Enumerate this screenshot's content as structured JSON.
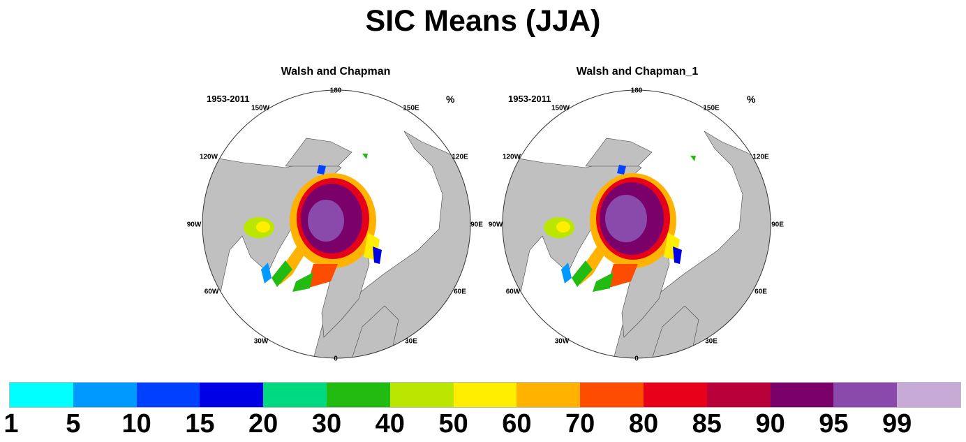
{
  "title": "SIC Means (JJA)",
  "panels": [
    {
      "title": "Walsh and Chapman",
      "period": "1953-2011",
      "unit": "%"
    },
    {
      "title": "Walsh and Chapman_1",
      "period": "1953-2011",
      "unit": "%"
    }
  ],
  "longitude_labels": [
    "180",
    "150E",
    "120E",
    "90E",
    "60E",
    "30E",
    "0",
    "30W",
    "60W",
    "90W",
    "120W",
    "150W"
  ],
  "colorbar": {
    "colors": [
      "#00ffff",
      "#0099ff",
      "#0040ff",
      "#0000e6",
      "#00d97f",
      "#22bb11",
      "#bbe600",
      "#ffee00",
      "#ffb300",
      "#ff4d00",
      "#e6001a",
      "#b8003a",
      "#7a006a",
      "#8a4aab",
      "#c7aad6"
    ],
    "labels": [
      "1",
      "5",
      "10",
      "15",
      "20",
      "30",
      "40",
      "50",
      "60",
      "70",
      "80",
      "85",
      "90",
      "95",
      "99"
    ]
  },
  "colors": {
    "land": "#c0c0c0",
    "ocean": "#ffffff"
  }
}
